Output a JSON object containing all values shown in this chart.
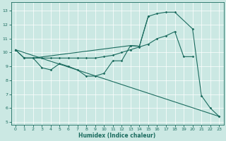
{
  "xlabel": "Humidex (Indice chaleur)",
  "xlim": [
    -0.5,
    23.5
  ],
  "ylim": [
    4.8,
    13.6
  ],
  "yticks": [
    5,
    6,
    7,
    8,
    9,
    10,
    11,
    12,
    13
  ],
  "xticks": [
    0,
    1,
    2,
    3,
    4,
    5,
    6,
    7,
    8,
    9,
    10,
    11,
    12,
    13,
    14,
    15,
    16,
    17,
    18,
    19,
    20,
    21,
    22,
    23
  ],
  "bg_color": "#cbe8e3",
  "line_color": "#1a6b5e",
  "grid_color": "#ffffff",
  "series_top": {
    "x": [
      0,
      1,
      2,
      13,
      14,
      15,
      16,
      17,
      18,
      20,
      21,
      22,
      23
    ],
    "y": [
      10.2,
      9.6,
      9.6,
      10.5,
      10.45,
      12.6,
      12.8,
      12.9,
      12.9,
      11.7,
      6.9,
      6.0,
      5.4
    ]
  },
  "series_mid": {
    "x": [
      0,
      1,
      2,
      3,
      4,
      5,
      6,
      7,
      8,
      9,
      10,
      11,
      12,
      13,
      14,
      15,
      16,
      17,
      18,
      19,
      20
    ],
    "y": [
      10.2,
      9.6,
      9.6,
      9.6,
      9.6,
      9.6,
      9.6,
      9.6,
      9.6,
      9.6,
      9.7,
      9.8,
      10.0,
      10.2,
      10.4,
      10.6,
      11.0,
      11.2,
      11.5,
      9.7,
      9.7
    ]
  },
  "series_wavy": {
    "x": [
      1,
      2,
      3,
      4,
      5,
      6,
      7,
      8,
      9,
      10,
      11,
      12,
      13,
      14,
      15
    ],
    "y": [
      9.6,
      9.6,
      8.9,
      8.75,
      9.2,
      9.0,
      8.75,
      8.3,
      8.3,
      8.5,
      9.4,
      9.4,
      10.5,
      10.45,
      12.6
    ]
  },
  "series_decline": {
    "x": [
      0,
      23
    ],
    "y": [
      10.2,
      5.4
    ]
  }
}
